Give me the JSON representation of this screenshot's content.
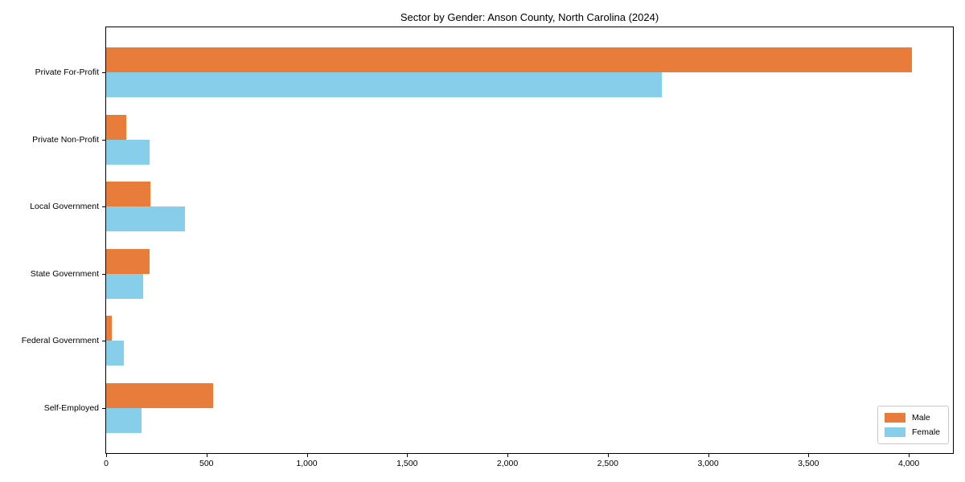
{
  "chart_data": {
    "type": "bar",
    "orientation": "horizontal",
    "title": "Sector by Gender: Anson County, North Carolina (2024)",
    "categories": [
      "Private For-Profit",
      "Private Non-Profit",
      "Local Government",
      "State Government",
      "Federal Government",
      "Self-Employed"
    ],
    "series": [
      {
        "name": "Male",
        "color": "#e87d3b",
        "values": [
          4017,
          101,
          221,
          218,
          27,
          534
        ]
      },
      {
        "name": "Female",
        "color": "#87ceeb",
        "values": [
          2770,
          217,
          391,
          185,
          87,
          177
        ]
      }
    ],
    "xlabel": "",
    "ylabel": "",
    "xlim": [
      0,
      4220
    ],
    "xticks": [
      0,
      500,
      1000,
      1500,
      2000,
      2500,
      3000,
      3500,
      4000
    ],
    "xtick_labels": [
      "0",
      "500",
      "1,000",
      "1,500",
      "2,000",
      "2,500",
      "3,000",
      "3,500",
      "4,000"
    ],
    "legend": {
      "position": "lower right",
      "entries": [
        "Male",
        "Female"
      ]
    },
    "grid": false,
    "background_color": "#ffffff",
    "axis_color": "#000000"
  }
}
